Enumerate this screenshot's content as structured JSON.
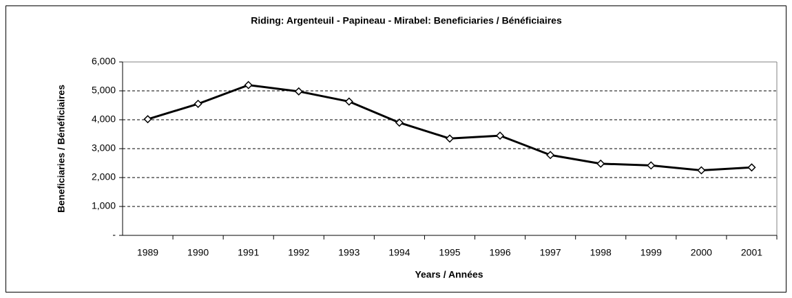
{
  "chart_data": {
    "type": "line",
    "title": "Riding:  Argenteuil - Papineau - Mirabel:  Beneficiaries / Bénéficiaires",
    "x_label": "Years / Années",
    "y_label": "Beneficiaries / Bénéficiaires",
    "categories": [
      "1989",
      "1990",
      "1991",
      "1992",
      "1993",
      "1994",
      "1995",
      "1996",
      "1997",
      "1998",
      "1999",
      "2000",
      "2001"
    ],
    "series": [
      {
        "name": "Beneficiaries / Bénéficiaires",
        "color": "#000000",
        "values": [
          4020,
          4550,
          5200,
          4980,
          4630,
          3900,
          3350,
          3450,
          2780,
          2480,
          2420,
          2250,
          2350
        ]
      }
    ],
    "ylim": [
      0,
      6000
    ],
    "yticks": [
      {
        "value": 0,
        "label": "-"
      },
      {
        "value": 1000,
        "label": "1,000"
      },
      {
        "value": 2000,
        "label": "2,000"
      },
      {
        "value": 3000,
        "label": "3,000"
      },
      {
        "value": 4000,
        "label": "4,000"
      },
      {
        "value": 5000,
        "label": "5,000"
      },
      {
        "value": 6000,
        "label": "6,000"
      }
    ],
    "grid": true
  }
}
